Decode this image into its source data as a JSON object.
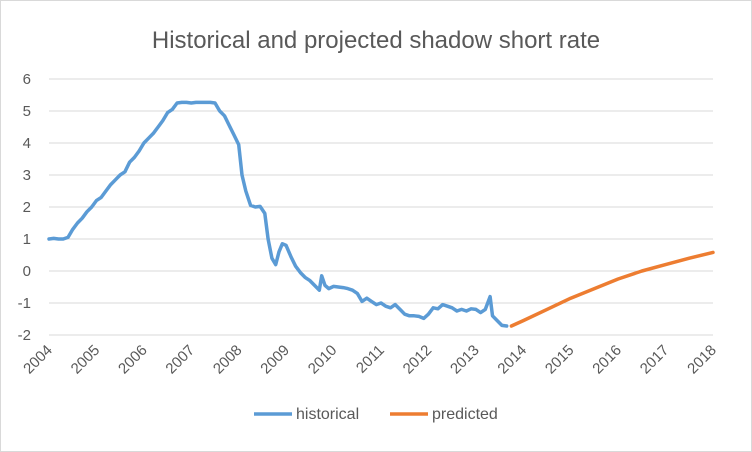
{
  "chart_data": {
    "type": "line",
    "title": "Historical and projected shadow short rate",
    "xlabel": "",
    "ylabel": "",
    "xlim": [
      2004,
      2018
    ],
    "ylim": [
      -2,
      6
    ],
    "x_ticks": [
      "2004",
      "2005",
      "2006",
      "2007",
      "2008",
      "2009",
      "2010",
      "2011",
      "2012",
      "2013",
      "2014",
      "2015",
      "2016",
      "2017",
      "2018"
    ],
    "y_ticks": [
      "6",
      "5",
      "4",
      "3",
      "2",
      "1",
      "0",
      "-1",
      "-2"
    ],
    "grid": true,
    "legend_position": "bottom",
    "series": [
      {
        "name": "historical",
        "color": "#5b9bd5",
        "points": [
          [
            2004.0,
            1.0
          ],
          [
            2004.1,
            1.02
          ],
          [
            2004.2,
            1.0
          ],
          [
            2004.3,
            1.0
          ],
          [
            2004.4,
            1.05
          ],
          [
            2004.5,
            1.3
          ],
          [
            2004.6,
            1.5
          ],
          [
            2004.7,
            1.65
          ],
          [
            2004.8,
            1.85
          ],
          [
            2004.9,
            2.0
          ],
          [
            2005.0,
            2.2
          ],
          [
            2005.1,
            2.3
          ],
          [
            2005.2,
            2.5
          ],
          [
            2005.3,
            2.7
          ],
          [
            2005.4,
            2.85
          ],
          [
            2005.5,
            3.0
          ],
          [
            2005.6,
            3.1
          ],
          [
            2005.7,
            3.4
          ],
          [
            2005.8,
            3.55
          ],
          [
            2005.9,
            3.75
          ],
          [
            2006.0,
            4.0
          ],
          [
            2006.1,
            4.15
          ],
          [
            2006.2,
            4.3
          ],
          [
            2006.3,
            4.5
          ],
          [
            2006.4,
            4.7
          ],
          [
            2006.5,
            4.95
          ],
          [
            2006.6,
            5.05
          ],
          [
            2006.7,
            5.25
          ],
          [
            2006.8,
            5.27
          ],
          [
            2006.9,
            5.27
          ],
          [
            2007.0,
            5.25
          ],
          [
            2007.1,
            5.27
          ],
          [
            2007.2,
            5.27
          ],
          [
            2007.3,
            5.27
          ],
          [
            2007.4,
            5.27
          ],
          [
            2007.5,
            5.25
          ],
          [
            2007.6,
            5.0
          ],
          [
            2007.7,
            4.85
          ],
          [
            2007.8,
            4.55
          ],
          [
            2007.9,
            4.25
          ],
          [
            2008.0,
            3.95
          ],
          [
            2008.07,
            3.0
          ],
          [
            2008.15,
            2.5
          ],
          [
            2008.25,
            2.05
          ],
          [
            2008.35,
            2.0
          ],
          [
            2008.45,
            2.02
          ],
          [
            2008.55,
            1.8
          ],
          [
            2008.62,
            1.0
          ],
          [
            2008.7,
            0.4
          ],
          [
            2008.78,
            0.2
          ],
          [
            2008.85,
            0.6
          ],
          [
            2008.92,
            0.85
          ],
          [
            2009.0,
            0.8
          ],
          [
            2009.1,
            0.45
          ],
          [
            2009.2,
            0.15
          ],
          [
            2009.3,
            -0.05
          ],
          [
            2009.4,
            -0.2
          ],
          [
            2009.5,
            -0.3
          ],
          [
            2009.6,
            -0.45
          ],
          [
            2009.7,
            -0.6
          ],
          [
            2009.75,
            -0.15
          ],
          [
            2009.82,
            -0.45
          ],
          [
            2009.9,
            -0.55
          ],
          [
            2010.0,
            -0.48
          ],
          [
            2010.1,
            -0.5
          ],
          [
            2010.2,
            -0.52
          ],
          [
            2010.3,
            -0.55
          ],
          [
            2010.4,
            -0.6
          ],
          [
            2010.5,
            -0.7
          ],
          [
            2010.6,
            -0.95
          ],
          [
            2010.7,
            -0.85
          ],
          [
            2010.8,
            -0.95
          ],
          [
            2010.9,
            -1.05
          ],
          [
            2011.0,
            -1.0
          ],
          [
            2011.1,
            -1.1
          ],
          [
            2011.2,
            -1.15
          ],
          [
            2011.3,
            -1.05
          ],
          [
            2011.4,
            -1.2
          ],
          [
            2011.5,
            -1.35
          ],
          [
            2011.6,
            -1.4
          ],
          [
            2011.7,
            -1.4
          ],
          [
            2011.8,
            -1.42
          ],
          [
            2011.9,
            -1.48
          ],
          [
            2012.0,
            -1.35
          ],
          [
            2012.1,
            -1.15
          ],
          [
            2012.2,
            -1.18
          ],
          [
            2012.3,
            -1.05
          ],
          [
            2012.4,
            -1.1
          ],
          [
            2012.5,
            -1.15
          ],
          [
            2012.6,
            -1.25
          ],
          [
            2012.7,
            -1.2
          ],
          [
            2012.8,
            -1.25
          ],
          [
            2012.9,
            -1.18
          ],
          [
            2013.0,
            -1.2
          ],
          [
            2013.1,
            -1.3
          ],
          [
            2013.2,
            -1.2
          ],
          [
            2013.3,
            -0.8
          ],
          [
            2013.35,
            -1.4
          ],
          [
            2013.45,
            -1.55
          ],
          [
            2013.55,
            -1.7
          ],
          [
            2013.65,
            -1.72
          ]
        ]
      },
      {
        "name": "predicted",
        "color": "#ed7d31",
        "points": [
          [
            2013.75,
            -1.72
          ],
          [
            2014.0,
            -1.55
          ],
          [
            2014.5,
            -1.2
          ],
          [
            2015.0,
            -0.85
          ],
          [
            2015.5,
            -0.55
          ],
          [
            2016.0,
            -0.25
          ],
          [
            2016.5,
            0.0
          ],
          [
            2017.0,
            0.2
          ],
          [
            2017.5,
            0.4
          ],
          [
            2018.0,
            0.58
          ]
        ]
      }
    ]
  }
}
